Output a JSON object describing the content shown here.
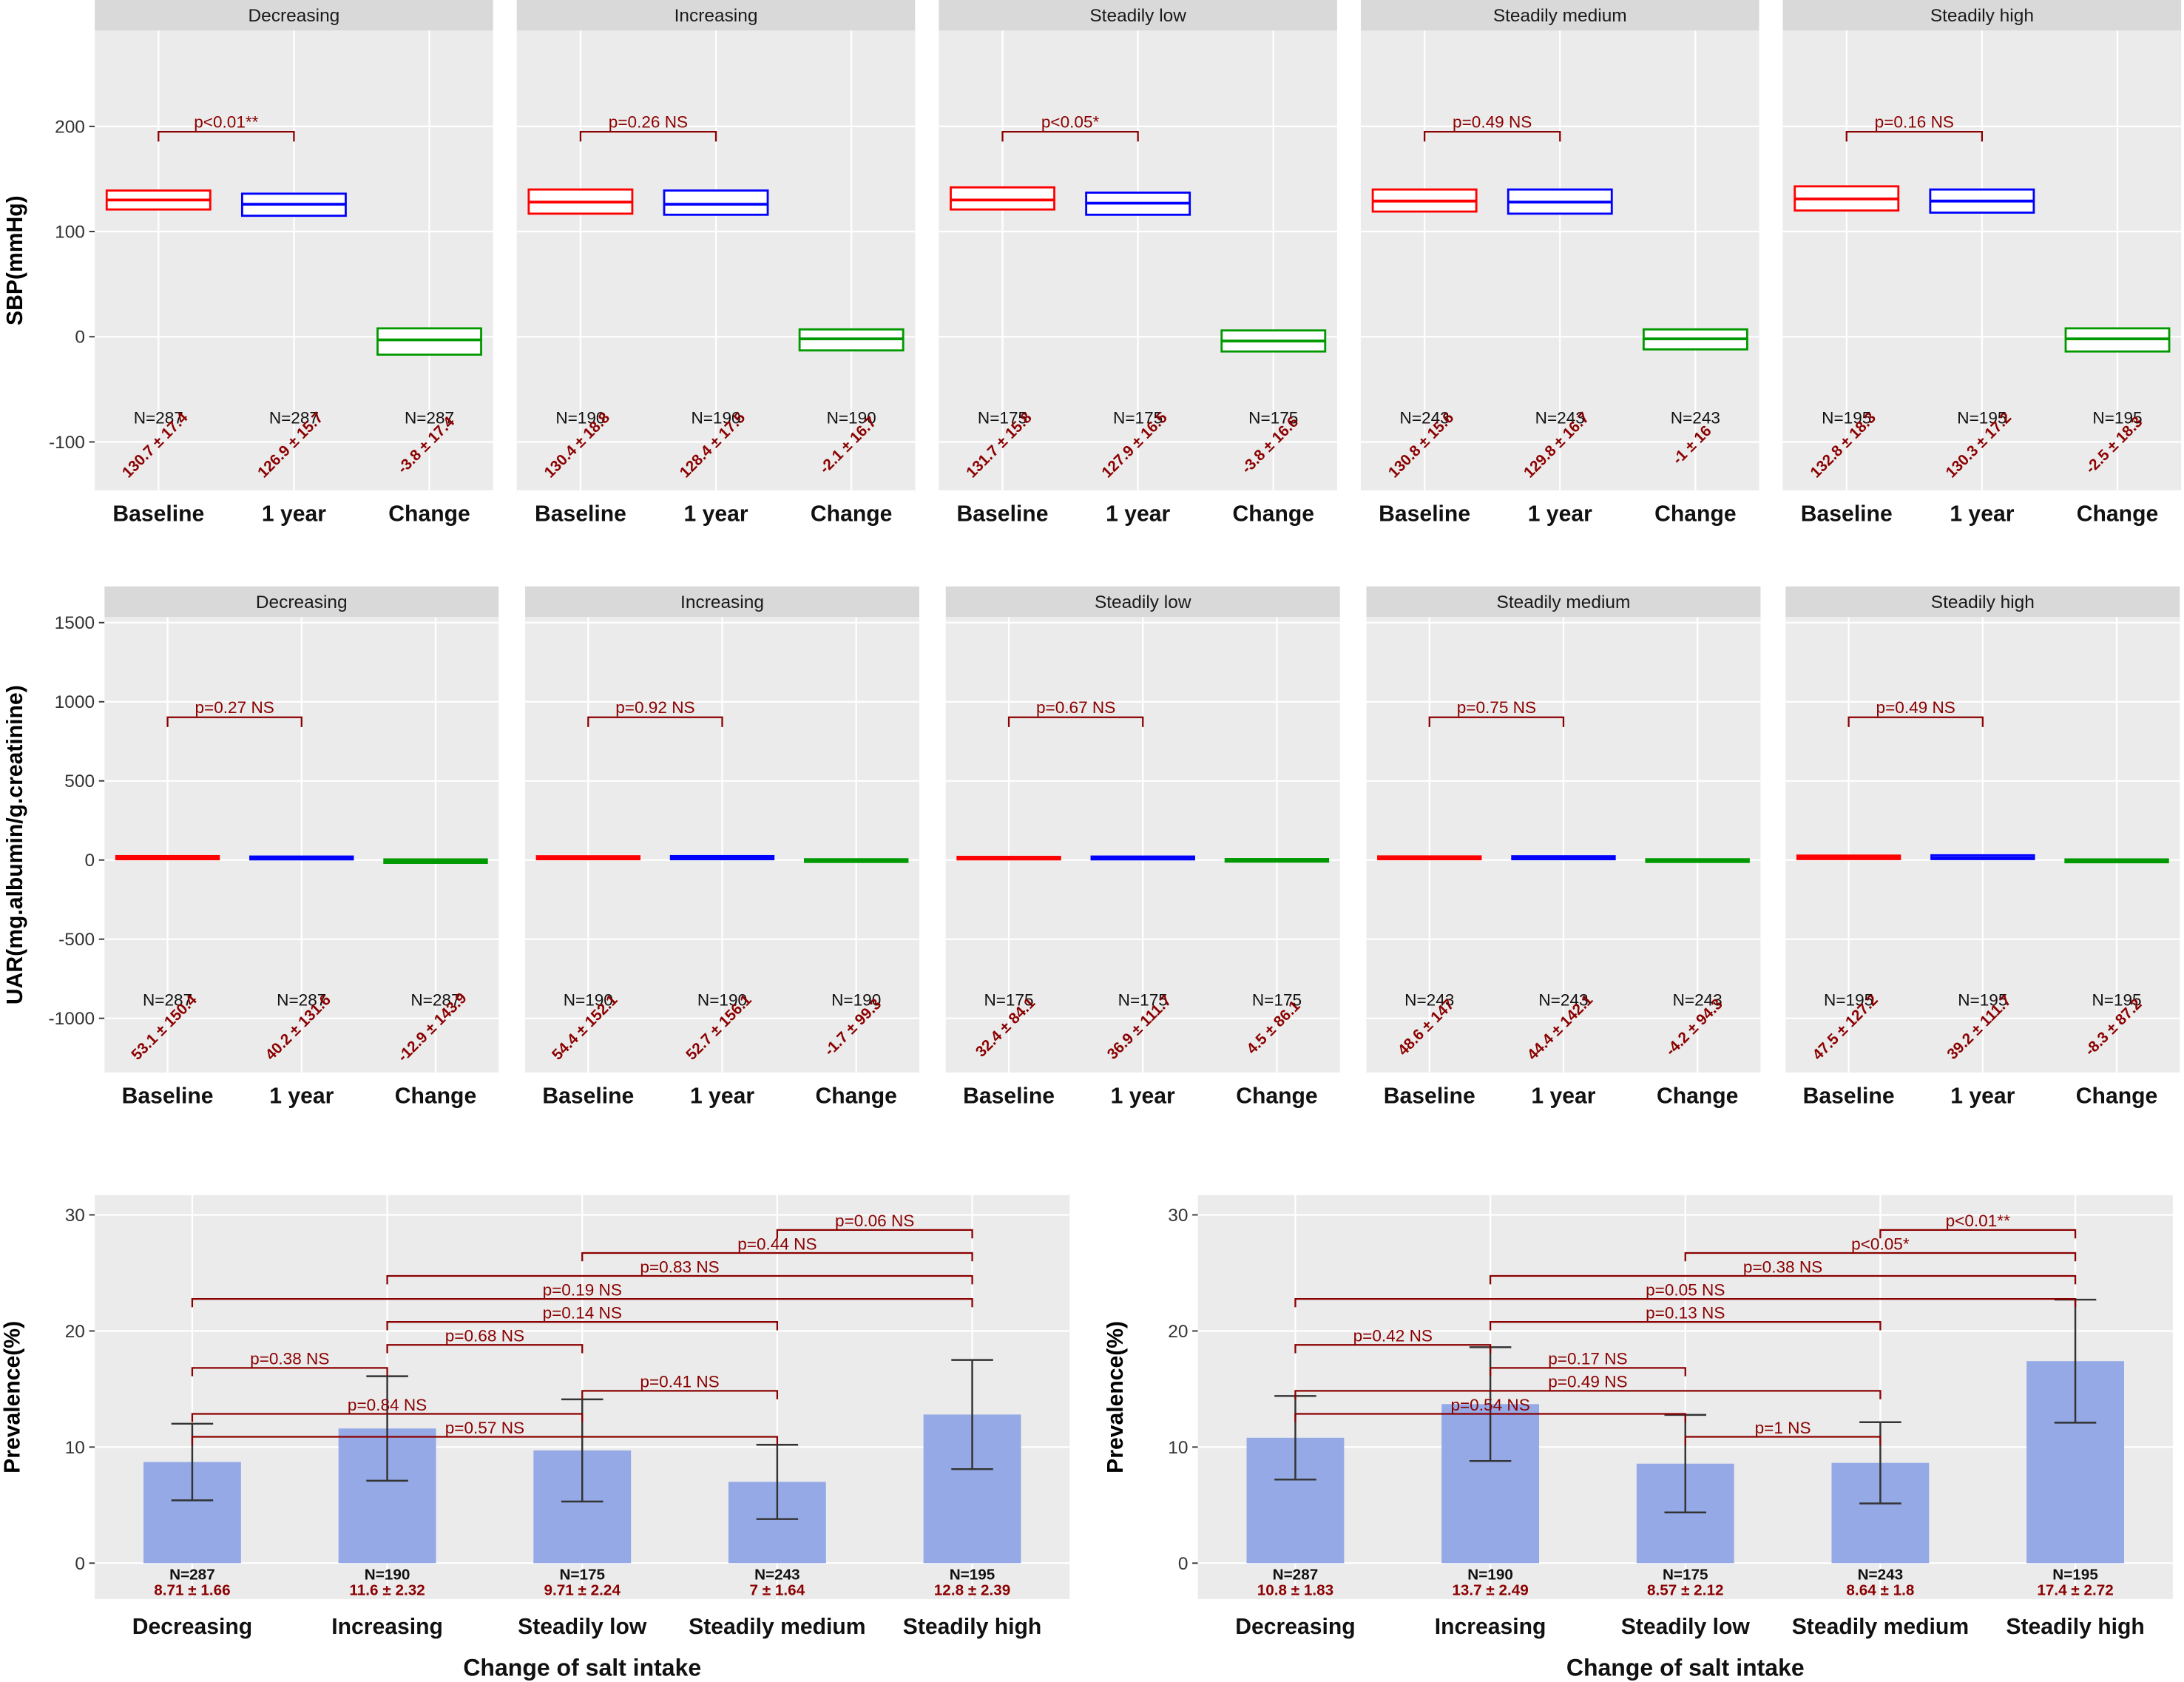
{
  "chart_data": [
    {
      "type": "facet-box",
      "ylabel": "SBP(mmHg)",
      "ylim": [
        -146,
        291
      ],
      "yticks": [
        -100,
        0,
        100,
        200
      ],
      "grid": true,
      "categories": [
        "Baseline",
        "1 year",
        "Change"
      ],
      "colors": [
        "#ff0000",
        "#0000ff",
        "#009900"
      ],
      "facets": [
        {
          "name": "Decreasing",
          "n_labels": [
            "N=287",
            "N=287",
            "N=287"
          ],
          "mean_labels": [
            "130.7 ± 17.4",
            "126.9 ± 15.7",
            "-3.8 ± 17.4"
          ],
          "p_label": "p<0.01**",
          "boxes": [
            {
              "q1": 121,
              "median": 130,
              "q3": 139
            },
            {
              "q1": 115,
              "median": 126,
              "q3": 136
            },
            {
              "q1": -17,
              "median": -3,
              "q3": 8
            }
          ]
        },
        {
          "name": "Increasing",
          "n_labels": [
            "N=190",
            "N=190",
            "N=190"
          ],
          "mean_labels": [
            "130.4 ± 18.8",
            "128.4 ± 17.5",
            "-2.1 ± 16.7"
          ],
          "p_label": "p=0.26 NS",
          "boxes": [
            {
              "q1": 117,
              "median": 128,
              "q3": 140
            },
            {
              "q1": 116,
              "median": 126,
              "q3": 139
            },
            {
              "q1": -13,
              "median": -2,
              "q3": 7
            }
          ]
        },
        {
          "name": "Steadily low",
          "n_labels": [
            "N=175",
            "N=175",
            "N=175"
          ],
          "mean_labels": [
            "131.7 ± 15.8",
            "127.9 ± 16.5",
            "-3.8 ± 16.6"
          ],
          "p_label": "p<0.05*",
          "boxes": [
            {
              "q1": 121,
              "median": 130,
              "q3": 142
            },
            {
              "q1": 116,
              "median": 127,
              "q3": 137
            },
            {
              "q1": -14,
              "median": -4,
              "q3": 6
            }
          ]
        },
        {
          "name": "Steadily medium",
          "n_labels": [
            "N=243",
            "N=243",
            "N=243"
          ],
          "mean_labels": [
            "130.8 ± 15.6",
            "129.8 ± 16.7",
            "-1 ± 16"
          ],
          "p_label": "p=0.49 NS",
          "boxes": [
            {
              "q1": 119,
              "median": 129,
              "q3": 140
            },
            {
              "q1": 117,
              "median": 128,
              "q3": 140
            },
            {
              "q1": -12,
              "median": -2,
              "q3": 7
            }
          ]
        },
        {
          "name": "Steadily high",
          "n_labels": [
            "N=195",
            "N=195",
            "N=195"
          ],
          "mean_labels": [
            "132.8 ± 18.3",
            "130.3 ± 17.2",
            "-2.5 ± 18.3"
          ],
          "p_label": "p=0.16 NS",
          "boxes": [
            {
              "q1": 120,
              "median": 131,
              "q3": 143
            },
            {
              "q1": 118,
              "median": 129,
              "q3": 140
            },
            {
              "q1": -14,
              "median": -2,
              "q3": 8
            }
          ]
        }
      ]
    },
    {
      "type": "facet-box",
      "ylabel": "UAR(mg.albumin/g.creatinine)",
      "ylim": [
        -1343,
        1535
      ],
      "yticks": [
        -1000,
        -500,
        0,
        500,
        1000,
        1500
      ],
      "grid": true,
      "categories": [
        "Baseline",
        "1 year",
        "Change"
      ],
      "colors": [
        "#ff0000",
        "#0000ff",
        "#009900"
      ],
      "facets": [
        {
          "name": "Decreasing",
          "n_labels": [
            "N=287",
            "N=287",
            "N=287"
          ],
          "mean_labels": [
            "53.1 ± 150.4",
            "40.2 ± 131.6",
            "-12.9 ± 143.9"
          ],
          "p_label": "p=0.27 NS",
          "boxes": [
            {
              "q1": 5,
              "median": 12,
              "q3": 25
            },
            {
              "q1": 4,
              "median": 10,
              "q3": 22
            },
            {
              "q1": -18,
              "median": -4,
              "q3": 4
            }
          ]
        },
        {
          "name": "Increasing",
          "n_labels": [
            "N=190",
            "N=190",
            "N=190"
          ],
          "mean_labels": [
            "54.4 ± 152.1",
            "52.7 ± 156.1",
            "-1.7 ± 99.3"
          ],
          "p_label": "p=0.92 NS",
          "boxes": [
            {
              "q1": 5,
              "median": 12,
              "q3": 24
            },
            {
              "q1": 5,
              "median": 12,
              "q3": 25
            },
            {
              "q1": -12,
              "median": -2,
              "q3": 5
            }
          ]
        },
        {
          "name": "Steadily low",
          "n_labels": [
            "N=175",
            "N=175",
            "N=175"
          ],
          "mean_labels": [
            "32.4 ± 84.1",
            "36.9 ± 111.7",
            "4.5 ± 86.1"
          ],
          "p_label": "p=0.67 NS",
          "boxes": [
            {
              "q1": 4,
              "median": 10,
              "q3": 20
            },
            {
              "q1": 4,
              "median": 10,
              "q3": 22
            },
            {
              "q1": -10,
              "median": -1,
              "q3": 6
            }
          ]
        },
        {
          "name": "Steadily medium",
          "n_labels": [
            "N=243",
            "N=243",
            "N=243"
          ],
          "mean_labels": [
            "48.6 ± 147",
            "44.4 ± 142.1",
            "-4.2 ± 94.3"
          ],
          "p_label": "p=0.75 NS",
          "boxes": [
            {
              "q1": 5,
              "median": 11,
              "q3": 23
            },
            {
              "q1": 5,
              "median": 11,
              "q3": 24
            },
            {
              "q1": -12,
              "median": -2,
              "q3": 5
            }
          ]
        },
        {
          "name": "Steadily high",
          "n_labels": [
            "N=195",
            "N=195",
            "N=195"
          ],
          "mean_labels": [
            "47.5 ± 127.2",
            "39.2 ± 111.7",
            "-8.3 ± 87.2"
          ],
          "p_label": "p=0.49 NS",
          "boxes": [
            {
              "q1": 6,
              "median": 14,
              "q3": 28
            },
            {
              "q1": 6,
              "median": 14,
              "q3": 30
            },
            {
              "q1": -14,
              "median": -3,
              "q3": 4
            }
          ]
        }
      ]
    },
    {
      "type": "bar",
      "ylabel": "Prevalence(%)",
      "xlabel": "Change of salt intake",
      "ylim": [
        -3.1,
        31.7
      ],
      "yticks": [
        0,
        10,
        20,
        30
      ],
      "grid": true,
      "color": "#94a9e6",
      "error_color": "#333333",
      "categories": [
        "Decreasing",
        "Increasing",
        "Steadily low",
        "Steadily medium",
        "Steadily high"
      ],
      "values": [
        8.71,
        11.6,
        9.71,
        7,
        12.8
      ],
      "errors": [
        3.3,
        4.5,
        4.4,
        3.2,
        4.7
      ],
      "n_labels": [
        "N=287",
        "N=190",
        "N=175",
        "N=243",
        "N=195"
      ],
      "value_labels": [
        "8.71 ± 1.66",
        "11.6 ± 2.32",
        "9.71 ± 2.24",
        "7 ± 1.64",
        "12.8 ± 2.39"
      ],
      "comparisons": [
        {
          "from": "Steadily medium",
          "to": "Steadily high",
          "label": "p=0.06 NS"
        },
        {
          "from": "Steadily low",
          "to": "Steadily high",
          "label": "p=0.44 NS"
        },
        {
          "from": "Increasing",
          "to": "Steadily high",
          "label": "p=0.83 NS"
        },
        {
          "from": "Decreasing",
          "to": "Steadily high",
          "label": "p=0.19 NS"
        },
        {
          "from": "Increasing",
          "to": "Steadily medium",
          "label": "p=0.14 NS"
        },
        {
          "from": "Increasing",
          "to": "Steadily low",
          "label": "p=0.68 NS"
        },
        {
          "from": "Decreasing",
          "to": "Increasing",
          "label": "p=0.38 NS"
        },
        {
          "from": "Steadily low",
          "to": "Steadily medium",
          "label": "p=0.41 NS"
        },
        {
          "from": "Decreasing",
          "to": "Steadily low",
          "label": "p=0.84 NS"
        },
        {
          "from": "Decreasing",
          "to": "Steadily medium",
          "label": "p=0.57 NS"
        }
      ]
    },
    {
      "type": "bar",
      "ylabel": "Prevalence(%)",
      "xlabel": "Change of salt intake",
      "ylim": [
        -3.1,
        31.7
      ],
      "yticks": [
        0,
        10,
        20,
        30
      ],
      "grid": true,
      "color": "#94a9e6",
      "error_color": "#333333",
      "categories": [
        "Decreasing",
        "Increasing",
        "Steadily low",
        "Steadily medium",
        "Steadily high"
      ],
      "values": [
        10.8,
        13.7,
        8.57,
        8.64,
        17.4
      ],
      "errors": [
        3.6,
        4.9,
        4.2,
        3.5,
        5.3
      ],
      "n_labels": [
        "N=287",
        "N=190",
        "N=175",
        "N=243",
        "N=195"
      ],
      "value_labels": [
        "10.8 ± 1.83",
        "13.7 ± 2.49",
        "8.57 ± 2.12",
        "8.64 ± 1.8",
        "17.4 ± 2.72"
      ],
      "comparisons": [
        {
          "from": "Steadily medium",
          "to": "Steadily high",
          "label": "p<0.01**"
        },
        {
          "from": "Steadily low",
          "to": "Steadily high",
          "label": "p<0.05*"
        },
        {
          "from": "Increasing",
          "to": "Steadily high",
          "label": "p=0.38 NS"
        },
        {
          "from": "Decreasing",
          "to": "Steadily high",
          "label": "p=0.05 NS"
        },
        {
          "from": "Increasing",
          "to": "Steadily medium",
          "label": "p=0.13 NS"
        },
        {
          "from": "Decreasing",
          "to": "Increasing",
          "label": "p=0.42 NS"
        },
        {
          "from": "Increasing",
          "to": "Steadily low",
          "label": "p=0.17 NS"
        },
        {
          "from": "Decreasing",
          "to": "Steadily medium",
          "label": "p=0.49 NS"
        },
        {
          "from": "Decreasing",
          "to": "Steadily low",
          "label": "p=0.54 NS"
        },
        {
          "from": "Steadily low",
          "to": "Steadily medium",
          "label": "p=1 NS"
        }
      ]
    }
  ]
}
